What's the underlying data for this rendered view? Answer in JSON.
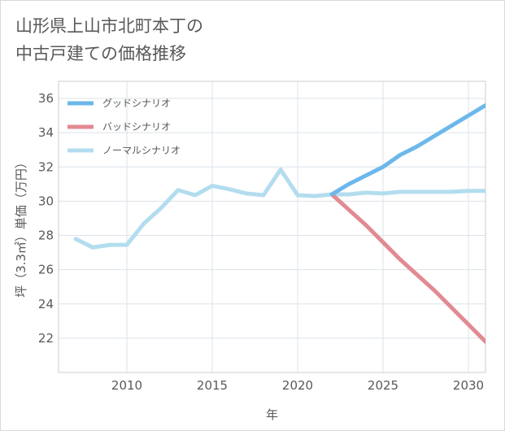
{
  "chart_data": {
    "type": "line",
    "title_lines": [
      "山形県上山市北町本丁の",
      "中古戸建ての価格推移"
    ],
    "xlabel": "年",
    "ylabel": "坪（3.3㎡）単価（万円）",
    "xlim": [
      2006,
      2031
    ],
    "ylim": [
      20,
      37
    ],
    "x_ticks": [
      2010,
      2015,
      2020,
      2025,
      2030
    ],
    "y_ticks": [
      22,
      24,
      26,
      28,
      30,
      32,
      34,
      36
    ],
    "x_tick_labels": [
      "2010",
      "2015",
      "2020",
      "2025",
      "2030"
    ],
    "y_tick_labels": [
      "22",
      "24",
      "26",
      "28",
      "30",
      "32",
      "34",
      "36"
    ],
    "grid": true,
    "legend_position": "top-left",
    "series": [
      {
        "name": "グッドシナリオ",
        "color": "#6cb8ea",
        "points": [
          [
            2022,
            30.4
          ],
          [
            2023,
            31.0
          ],
          [
            2024,
            31.5
          ],
          [
            2025,
            32.0
          ],
          [
            2026,
            32.7
          ],
          [
            2027,
            33.2
          ],
          [
            2028,
            33.8
          ],
          [
            2029,
            34.4
          ],
          [
            2030,
            35.0
          ],
          [
            2031,
            35.6
          ]
        ]
      },
      {
        "name": "バッドシナリオ",
        "color": "#e28a92",
        "points": [
          [
            2022,
            30.4
          ],
          [
            2023,
            29.5
          ],
          [
            2024,
            28.6
          ],
          [
            2025,
            27.6
          ],
          [
            2026,
            26.6
          ],
          [
            2027,
            25.7
          ],
          [
            2028,
            24.8
          ],
          [
            2029,
            23.8
          ],
          [
            2030,
            22.8
          ],
          [
            2031,
            21.8
          ]
        ]
      },
      {
        "name": "ノーマルシナリオ",
        "color": "#b3ddef",
        "points": [
          [
            2007,
            27.8
          ],
          [
            2008,
            27.3
          ],
          [
            2009,
            27.45
          ],
          [
            2010,
            27.45
          ],
          [
            2011,
            28.7
          ],
          [
            2012,
            29.6
          ],
          [
            2013,
            30.65
          ],
          [
            2014,
            30.35
          ],
          [
            2015,
            30.9
          ],
          [
            2016,
            30.7
          ],
          [
            2017,
            30.45
          ],
          [
            2018,
            30.35
          ],
          [
            2019,
            31.85
          ],
          [
            2020,
            30.35
          ],
          [
            2021,
            30.3
          ],
          [
            2022,
            30.4
          ],
          [
            2023,
            30.4
          ],
          [
            2024,
            30.5
          ],
          [
            2025,
            30.45
          ],
          [
            2026,
            30.55
          ],
          [
            2027,
            30.55
          ],
          [
            2028,
            30.55
          ],
          [
            2029,
            30.55
          ],
          [
            2030,
            30.6
          ],
          [
            2031,
            30.6
          ]
        ]
      }
    ]
  }
}
